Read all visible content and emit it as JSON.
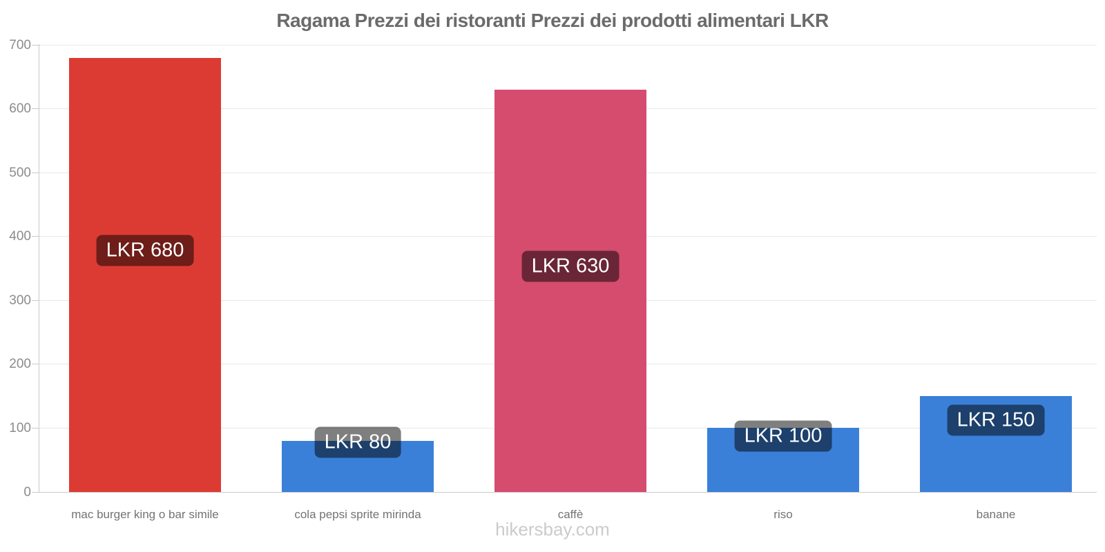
{
  "page": {
    "title": "Ragama Prezzi dei ristoranti Prezzi dei prodotti alimentari LKR",
    "footer": "hikersbay.com"
  },
  "chart_data": {
    "type": "bar",
    "title": "Ragama Prezzi dei ristoranti Prezzi dei prodotti alimentari LKR",
    "currency": "LKR",
    "categories": [
      "mac burger king o bar simile",
      "cola pepsi sprite mirinda",
      "caffè",
      "riso",
      "banane"
    ],
    "values": [
      680,
      80,
      630,
      100,
      150
    ],
    "value_labels": [
      "LKR 680",
      "LKR 80",
      "LKR 630",
      "LKR 100",
      "LKR 150"
    ],
    "bar_colors": [
      "#dc3b33",
      "#3a80d8",
      "#d54c6e",
      "#3a80d8",
      "#3a80d8"
    ],
    "yticks": [
      0,
      100,
      200,
      300,
      400,
      500,
      600,
      700
    ],
    "ylim": [
      0,
      700
    ],
    "xlabel": "",
    "ylabel": "",
    "grid": true,
    "legend_position": "none"
  },
  "colors": {
    "restaurant_red": "#dc3b33",
    "grocery_blue": "#3a80d8",
    "coffee_pink": "#d54c6e",
    "badge_overlay": "rgba(0,0,0,0.5)",
    "title_text": "#6b6b6b",
    "axis_text": "#8b8b8b",
    "category_text": "#737373",
    "footer_text": "#cbcbcb",
    "gridline": "#e8e8e8",
    "axis_line": "#c9c9c9"
  }
}
